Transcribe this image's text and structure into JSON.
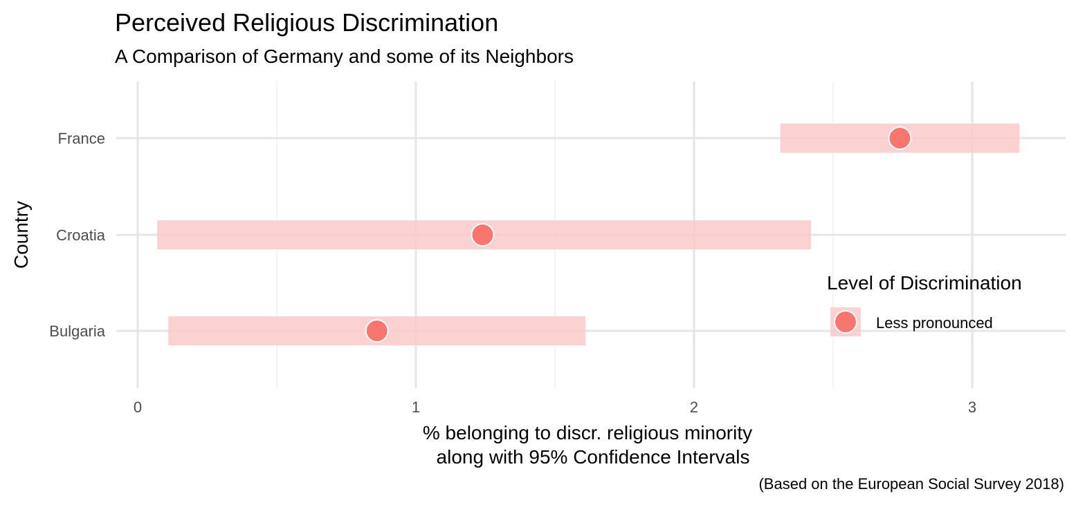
{
  "chart_data": {
    "type": "scatter",
    "title": "Perceived Religious Discrimination",
    "subtitle": "A Comparison of Germany and some of its Neighbors",
    "caption": "(Based on the European Social Survey 2018)",
    "xlabel_lines": [
      "% belonging to discr. religious minority",
      "along with 95% Confidence Intervals"
    ],
    "ylabel": "Country",
    "xlim": [
      0,
      3.3
    ],
    "x_ticks": [
      0,
      1,
      2,
      3
    ],
    "x_tick_labels": [
      "0",
      "1",
      "2",
      "3"
    ],
    "grid": true,
    "categories": [
      "France",
      "Croatia",
      "Bulgaria"
    ],
    "series": [
      {
        "name": "Less pronounced",
        "points": [
          {
            "category": "France",
            "value": 2.74,
            "ci_low": 2.31,
            "ci_high": 3.17
          },
          {
            "category": "Croatia",
            "value": 1.24,
            "ci_low": 0.07,
            "ci_high": 2.42
          },
          {
            "category": "Bulgaria",
            "value": 0.86,
            "ci_low": 0.11,
            "ci_high": 1.61
          }
        ]
      }
    ],
    "legend": {
      "title": "Level of Discrimination",
      "entries": [
        "Less pronounced"
      ],
      "position": "right"
    },
    "colors": {
      "point": "#f8766d",
      "ci_band": "#fcc9c9",
      "grid_major": "#e5e5e5",
      "grid_minor": "#f0f0f0"
    }
  }
}
